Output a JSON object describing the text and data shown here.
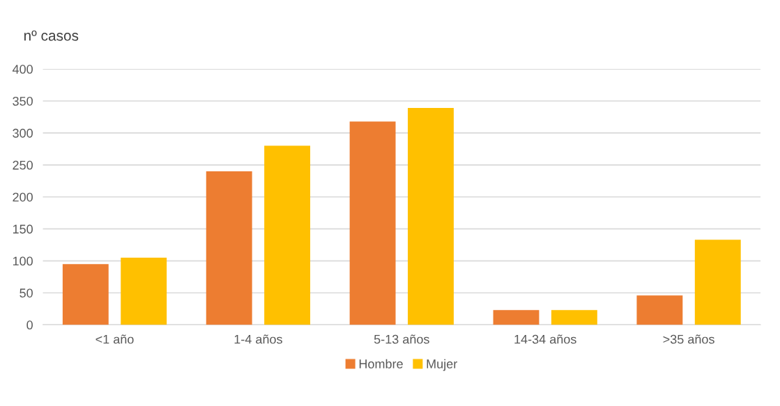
{
  "chart_data": {
    "type": "bar",
    "ylabel": "nº casos",
    "categories": [
      "<1 año",
      "1-4 años",
      "5-13 años",
      "14-34 años",
      ">35 años"
    ],
    "series": [
      {
        "name": "Hombre",
        "color": "#ed7d31",
        "values": [
          95,
          240,
          318,
          23,
          46
        ]
      },
      {
        "name": "Mujer",
        "color": "#ffc000",
        "values": [
          105,
          280,
          339,
          23,
          133
        ]
      }
    ],
    "ylim": [
      0,
      400
    ],
    "yticks": [
      0,
      50,
      100,
      150,
      200,
      250,
      300,
      350,
      400
    ],
    "grid": "y",
    "legend": "bottom"
  }
}
